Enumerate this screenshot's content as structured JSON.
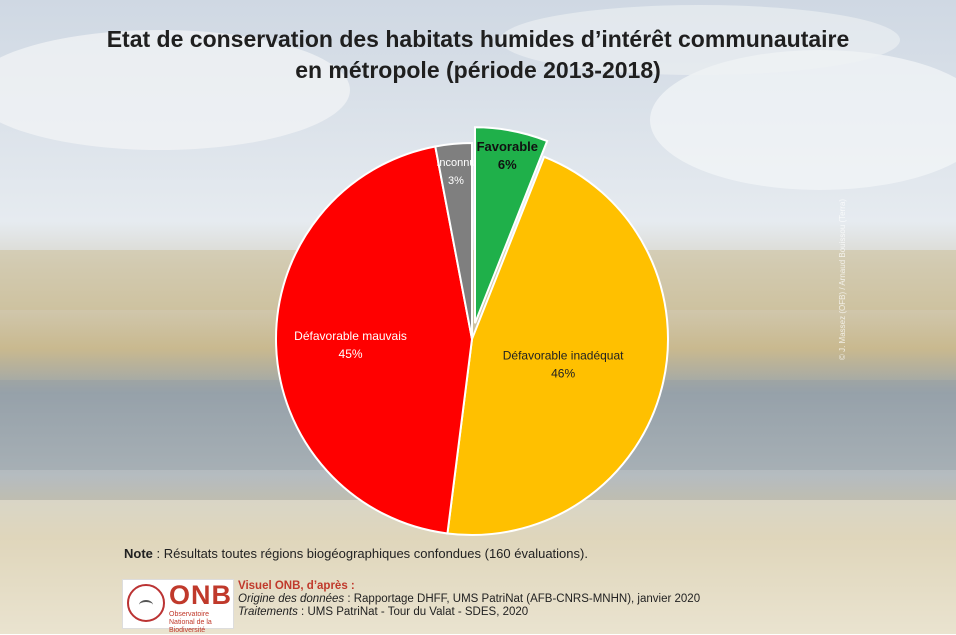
{
  "title": {
    "line1": "Etat de conservation des habitats humides d’intérêt communautaire",
    "line2": "en métropole (période 2013-2018)"
  },
  "chart_data": {
    "type": "pie",
    "title": "Etat de conservation des habitats humides d’intérêt communautaire en métropole (période 2013-2018)",
    "slices": [
      {
        "label": "Favorable",
        "value": 6,
        "value_label": "6%",
        "color": "#1fb04a",
        "exploded": true
      },
      {
        "label": "Défavorable inadéquat",
        "value": 46,
        "value_label": "46%",
        "color": "#ffc000",
        "exploded": false
      },
      {
        "label": "Défavorable mauvais",
        "value": 45,
        "value_label": "45%",
        "color": "#ff0000",
        "exploded": false
      },
      {
        "label": "Inconnu",
        "value": 3,
        "value_label": "3%",
        "color": "#7f7f7f",
        "exploded": false
      }
    ]
  },
  "note": {
    "label": "Note",
    "text": " : Résultats toutes régions biogéographiques confondues (160 évaluations)."
  },
  "logo": {
    "text": "ONB",
    "subtitle": "Observatoire National de la Biodiversité"
  },
  "credits": {
    "heading": "Visuel ONB, d’après :",
    "origin_label": "Origine des données",
    "origin_text": " : Rapportage DHFF, UMS PatriNat (AFB-CNRS-MNHN), janvier 2020",
    "processing_label": "Traitements",
    "processing_text": " : UMS PatriNat - Tour du Valat - SDES, 2020"
  },
  "photo_credit": "© J. Massez (OFB) / Arnaud Bouissou (Terra)"
}
